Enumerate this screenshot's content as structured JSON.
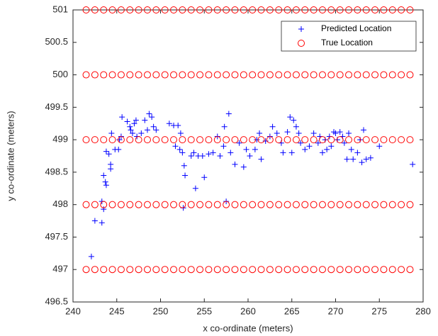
{
  "chart_data": {
    "type": "scatter",
    "xlabel": "x co-ordinate (meters)",
    "ylabel": "y co-ordinate (meters)",
    "xlim": [
      240,
      280
    ],
    "xticks": [
      240,
      245,
      250,
      255,
      260,
      265,
      270,
      275,
      280
    ],
    "ylim": [
      496.5,
      501
    ],
    "yticks": [
      496.5,
      497,
      497.5,
      498,
      498.5,
      499,
      499.5,
      500,
      500.5,
      501
    ],
    "legend": "upper right",
    "series": [
      {
        "name": "Predicted Location",
        "color": "#0000ff",
        "marker": "+",
        "x": [
          242.1,
          242.5,
          243.3,
          243.3,
          243.5,
          243.5,
          243.7,
          243.8,
          243.8,
          244.1,
          244.3,
          244.3,
          244.4,
          244.8,
          245.2,
          245.3,
          245.5,
          245.6,
          246.2,
          246.5,
          246.6,
          246.8,
          247.0,
          247.2,
          247.3,
          247.8,
          248.2,
          248.5,
          248.7,
          249.0,
          249.2,
          249.5,
          251.0,
          251.5,
          251.7,
          252.0,
          252.2,
          252.3,
          252.5,
          252.7,
          252.8,
          252.6,
          253.5,
          253.8,
          254.0,
          254.3,
          254.8,
          255.0,
          255.5,
          256.0,
          256.5,
          256.8,
          257.2,
          257.3,
          257.5,
          257.8,
          258.0,
          258.5,
          259.0,
          259.5,
          259.8,
          260.2,
          260.8,
          261.0,
          261.3,
          261.5,
          262.0,
          262.5,
          262.8,
          263.3,
          263.8,
          264.0,
          264.5,
          264.8,
          265.0,
          265.2,
          265.5,
          265.8,
          266.0,
          266.5,
          267.0,
          267.5,
          268.0,
          268.2,
          268.5,
          268.8,
          269.0,
          269.3,
          269.5,
          269.8,
          270.0,
          270.2,
          270.5,
          270.8,
          271.0,
          271.3,
          271.5,
          271.8,
          272.0,
          272.5,
          272.8,
          273.2,
          273.0,
          273.5,
          274.0,
          275.0,
          278.8
        ],
        "y": [
          497.2,
          497.75,
          497.72,
          498.05,
          497.93,
          498.45,
          498.35,
          498.3,
          498.82,
          498.78,
          498.55,
          498.62,
          499.1,
          498.85,
          498.85,
          499.0,
          499.05,
          499.35,
          499.28,
          499.2,
          499.15,
          499.1,
          499.25,
          499.3,
          499.05,
          499.1,
          499.3,
          499.15,
          499.4,
          499.35,
          499.2,
          499.15,
          499.25,
          499.22,
          498.9,
          499.22,
          498.85,
          499.1,
          498.8,
          498.6,
          498.45,
          497.95,
          498.75,
          498.8,
          498.25,
          498.75,
          498.75,
          498.42,
          498.78,
          498.8,
          499.05,
          498.75,
          498.9,
          499.2,
          498.05,
          499.4,
          498.8,
          498.62,
          498.95,
          498.58,
          498.85,
          498.75,
          498.85,
          499.0,
          499.1,
          498.7,
          498.98,
          499.05,
          499.2,
          499.1,
          498.95,
          498.8,
          499.12,
          499.35,
          498.8,
          499.3,
          499.2,
          499.1,
          498.95,
          498.85,
          498.9,
          499.1,
          498.95,
          499.05,
          498.8,
          499.0,
          498.85,
          499.05,
          498.9,
          499.12,
          499.1,
          499.0,
          499.12,
          499.05,
          498.95,
          498.7,
          499.1,
          498.85,
          498.7,
          498.8,
          499.0,
          499.15,
          498.65,
          498.7,
          498.72,
          498.9,
          498.62
        ]
      },
      {
        "name": "True Location",
        "color": "#ff0000",
        "marker": "o",
        "x": [
          241.5,
          242.5,
          243.5,
          244.5,
          245.5,
          246.5,
          247.5,
          248.5,
          249.5,
          250.5,
          251.5,
          252.5,
          253.5,
          254.5,
          255.5,
          256.5,
          257.5,
          258.5,
          259.5,
          260.5,
          261.5,
          262.5,
          263.5,
          264.5,
          265.5,
          266.5,
          267.5,
          268.5,
          269.5,
          270.5,
          271.5,
          272.5,
          273.5,
          274.5,
          275.5,
          276.5,
          277.5,
          278.5,
          241.5,
          242.5,
          243.5,
          244.5,
          245.5,
          246.5,
          247.5,
          248.5,
          249.5,
          250.5,
          251.5,
          252.5,
          253.5,
          254.5,
          255.5,
          256.5,
          257.5,
          258.5,
          259.5,
          260.5,
          261.5,
          262.5,
          263.5,
          264.5,
          265.5,
          266.5,
          267.5,
          268.5,
          269.5,
          270.5,
          271.5,
          272.5,
          273.5,
          274.5,
          275.5,
          276.5,
          277.5,
          278.5,
          241.5,
          242.5,
          243.5,
          244.5,
          245.5,
          246.5,
          247.5,
          248.5,
          249.5,
          250.5,
          251.5,
          252.5,
          253.5,
          254.5,
          255.5,
          256.5,
          257.5,
          258.5,
          259.5,
          260.5,
          261.5,
          262.5,
          263.5,
          264.5,
          265.5,
          266.5,
          267.5,
          268.5,
          269.5,
          270.5,
          271.5,
          272.5,
          273.5,
          274.5,
          275.5,
          276.5,
          277.5,
          278.5,
          241.5,
          242.5,
          243.5,
          244.5,
          245.5,
          246.5,
          247.5,
          248.5,
          249.5,
          250.5,
          251.5,
          252.5,
          253.5,
          254.5,
          255.5,
          256.5,
          257.5,
          258.5,
          259.5,
          260.5,
          261.5,
          262.5,
          263.5,
          264.5,
          265.5,
          266.5,
          267.5,
          268.5,
          269.5,
          270.5,
          271.5,
          272.5,
          273.5,
          274.5,
          275.5,
          276.5,
          277.5,
          278.5,
          241.5,
          242.5,
          243.5,
          244.5,
          245.5,
          246.5,
          247.5,
          248.5,
          249.5,
          250.5,
          251.5,
          252.5,
          253.5,
          254.5,
          255.5,
          256.5,
          257.5,
          258.5,
          259.5,
          260.5,
          261.5,
          262.5,
          263.5,
          264.5,
          265.5,
          266.5,
          267.5,
          268.5,
          269.5,
          270.5,
          271.5,
          272.5,
          273.5,
          274.5,
          275.5,
          276.5,
          277.5,
          278.5
        ],
        "y": [
          501,
          501,
          501,
          501,
          501,
          501,
          501,
          501,
          501,
          501,
          501,
          501,
          501,
          501,
          501,
          501,
          501,
          501,
          501,
          501,
          501,
          501,
          501,
          501,
          501,
          501,
          501,
          501,
          501,
          501,
          501,
          501,
          501,
          501,
          501,
          501,
          501,
          501,
          500,
          500,
          500,
          500,
          500,
          500,
          500,
          500,
          500,
          500,
          500,
          500,
          500,
          500,
          500,
          500,
          500,
          500,
          500,
          500,
          500,
          500,
          500,
          500,
          500,
          500,
          500,
          500,
          500,
          500,
          500,
          500,
          500,
          500,
          500,
          500,
          500,
          500,
          499,
          499,
          499,
          499,
          499,
          499,
          499,
          499,
          499,
          499,
          499,
          499,
          499,
          499,
          499,
          499,
          499,
          499,
          499,
          499,
          499,
          499,
          499,
          499,
          499,
          499,
          499,
          499,
          499,
          499,
          499,
          499,
          499,
          499,
          499,
          499,
          499,
          499,
          498,
          498,
          498,
          498,
          498,
          498,
          498,
          498,
          498,
          498,
          498,
          498,
          498,
          498,
          498,
          498,
          498,
          498,
          498,
          498,
          498,
          498,
          498,
          498,
          498,
          498,
          498,
          498,
          498,
          498,
          498,
          498,
          498,
          498,
          498,
          498,
          498,
          498,
          497,
          497,
          497,
          497,
          497,
          497,
          497,
          497,
          497,
          497,
          497,
          497,
          497,
          497,
          497,
          497,
          497,
          497,
          497,
          497,
          497,
          497,
          497,
          497,
          497,
          497,
          497,
          497,
          497,
          497,
          497,
          497,
          497,
          497,
          497,
          497,
          497,
          497
        ]
      }
    ]
  }
}
